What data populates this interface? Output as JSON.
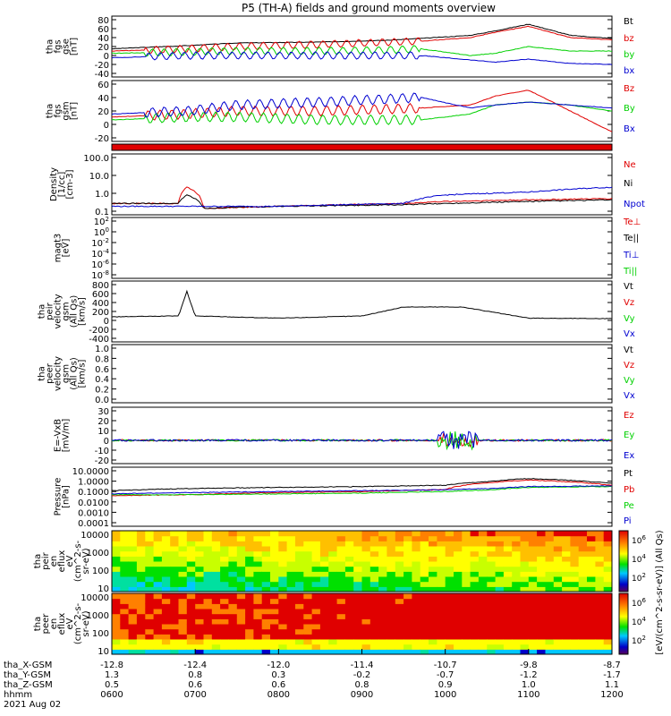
{
  "title": "P5 (TH-A) fields and ground moments overview",
  "date": "2021 Aug 02",
  "colorbar_label": "[eV/(cm^2-s-sr-eV)] (All Qs)",
  "colorbar_ticks": [
    "10^6",
    "10^4",
    "10^2"
  ],
  "colors": {
    "black": "#000000",
    "red": "#e00000",
    "green": "#00d000",
    "blue": "#0000d0",
    "orange": "#f08000"
  },
  "time_axis": {
    "rows": [
      {
        "label": "tha_X-GSM",
        "values": [
          "-12.8",
          "-12.4",
          "-12.0",
          "-11.4",
          "-10.7",
          "-9.8",
          "-8.7"
        ]
      },
      {
        "label": "tha_Y-GSM",
        "values": [
          "1.3",
          "0.8",
          "0.3",
          "-0.2",
          "-0.7",
          "-1.2",
          "-1.7"
        ]
      },
      {
        "label": "tha_Z-GSM",
        "values": [
          "0.5",
          "0.6",
          "0.6",
          "0.8",
          "0.9",
          "1.0",
          "1.1"
        ]
      },
      {
        "label": "hhmm",
        "values": [
          "0600",
          "0700",
          "0800",
          "0900",
          "1000",
          "1100",
          "1200"
        ]
      }
    ]
  },
  "chart_data": [
    {
      "type": "line",
      "panel": "fgs_gse",
      "ylabel": [
        "tha",
        "fgs",
        "gse",
        "[nT]"
      ],
      "yticks": [
        "80",
        "60",
        "40",
        "20",
        "0",
        "-20",
        "-40"
      ],
      "ylim": [
        -40,
        80
      ],
      "legend": [
        {
          "name": "Bt",
          "color": "#000000"
        },
        {
          "name": "bz",
          "color": "#e00000"
        },
        {
          "name": "by",
          "color": "#00d000"
        },
        {
          "name": "bx",
          "color": "#0000d0"
        }
      ],
      "series": [
        {
          "name": "Bt",
          "x": [
            6.0,
            6.9,
            7.5,
            8.5,
            9.3,
            9.7,
            10.3,
            10.6,
            11.0,
            11.5,
            12.0
          ],
          "y": [
            15,
            22,
            28,
            30,
            34,
            38,
            45,
            55,
            70,
            45,
            38
          ]
        },
        {
          "name": "bz",
          "x": [
            6.0,
            6.9,
            7.5,
            8.5,
            9.3,
            9.7,
            10.3,
            10.6,
            11.0,
            11.5,
            12.0
          ],
          "y": [
            10,
            15,
            20,
            25,
            30,
            32,
            40,
            52,
            65,
            40,
            35
          ]
        },
        {
          "name": "by",
          "x": [
            6.0,
            6.9,
            7.5,
            8.5,
            9.3,
            9.7,
            10.3,
            10.6,
            11.0,
            11.5,
            12.0
          ],
          "y": [
            5,
            8,
            10,
            10,
            12,
            15,
            0,
            5,
            20,
            10,
            10
          ]
        },
        {
          "name": "bx",
          "x": [
            6.0,
            6.9,
            7.5,
            8.5,
            9.3,
            9.7,
            10.3,
            10.6,
            11.0,
            11.5,
            12.0
          ],
          "y": [
            -5,
            0,
            0,
            0,
            0,
            0,
            -10,
            -15,
            -8,
            -18,
            -20
          ]
        }
      ]
    },
    {
      "type": "line",
      "panel": "fgs_gsm",
      "ylabel": [
        "tha",
        "fgs",
        "gsm",
        "[nT]"
      ],
      "yticks": [
        "60",
        "40",
        "20",
        "0",
        "-20"
      ],
      "ylim": [
        -30,
        60
      ],
      "legend": [
        {
          "name": "Bz",
          "color": "#e00000"
        },
        {
          "name": "By",
          "color": "#00d000"
        },
        {
          "name": "Bx",
          "color": "#0000d0"
        }
      ],
      "series": [
        {
          "name": "Bz",
          "x": [
            6.0,
            6.9,
            7.5,
            8.5,
            9.3,
            9.7,
            10.3,
            10.6,
            11.0,
            11.5,
            12.0
          ],
          "y": [
            5,
            10,
            15,
            15,
            18,
            20,
            25,
            40,
            50,
            15,
            -20
          ]
        },
        {
          "name": "By",
          "x": [
            6.0,
            6.9,
            7.5,
            8.5,
            9.3,
            9.7,
            10.3,
            10.6,
            11.0,
            11.5,
            12.0
          ],
          "y": [
            0,
            5,
            5,
            0,
            0,
            0,
            10,
            25,
            30,
            25,
            15
          ]
        },
        {
          "name": "Bx",
          "x": [
            6.0,
            6.9,
            7.5,
            8.5,
            9.3,
            9.7,
            10.3,
            10.6,
            11.0,
            11.5,
            12.0
          ],
          "y": [
            10,
            15,
            25,
            30,
            35,
            38,
            20,
            25,
            30,
            25,
            20
          ]
        }
      ]
    },
    {
      "type": "line",
      "panel": "density",
      "log_scale": true,
      "ylabel": [
        "Density",
        "[1/cc]",
        "[cm-3]"
      ],
      "yticks": [
        "100.0",
        "10.0",
        "1.0",
        "0.1"
      ],
      "ylim": [
        0.1,
        200
      ],
      "legend": [
        {
          "name": "Ne",
          "color": "#e00000"
        },
        {
          "name": "Ni",
          "color": "#000000"
        },
        {
          "name": "Npot",
          "color": "#0000d0"
        }
      ],
      "series": [
        {
          "name": "Ne",
          "x": [
            6.0,
            6.8,
            6.9,
            7.1,
            8.0,
            9.5,
            10.0,
            11.0,
            12.0
          ],
          "y": [
            0.3,
            0.3,
            3.0,
            0.15,
            0.2,
            0.3,
            0.4,
            0.5,
            0.6
          ]
        },
        {
          "name": "Ni",
          "x": [
            6.0,
            6.8,
            6.9,
            7.1,
            8.0,
            9.5,
            10.0,
            11.0,
            12.0
          ],
          "y": [
            0.3,
            0.3,
            1.0,
            0.15,
            0.2,
            0.25,
            0.3,
            0.4,
            0.5
          ]
        },
        {
          "name": "Npot",
          "x": [
            6.0,
            6.8,
            8.0,
            9.5,
            10.0,
            11.0,
            12.0
          ],
          "y": [
            0.2,
            0.2,
            0.2,
            0.3,
            1.0,
            1.5,
            3.0
          ]
        }
      ]
    },
    {
      "type": "line",
      "panel": "temperature",
      "log_scale": true,
      "ylabel": [
        "magt3",
        "[eV]"
      ],
      "yticks": [
        "10^2",
        "10^0",
        "10^-2",
        "10^-4",
        "10^-6",
        "10^-8"
      ],
      "legend": [
        {
          "name": "Te⊥",
          "color": "#e00000"
        },
        {
          "name": "Te||",
          "color": "#000000"
        },
        {
          "name": "Ti⊥",
          "color": "#0000d0"
        },
        {
          "name": "Ti||",
          "color": "#00d000"
        }
      ]
    },
    {
      "type": "line",
      "panel": "peir_velocity",
      "ylabel": [
        "tha",
        "peir",
        "velocity",
        "gsm",
        "(All Qs)",
        "[km/s]"
      ],
      "yticks": [
        "800",
        "600",
        "400",
        "200",
        "0",
        "-200",
        "-400"
      ],
      "ylim": [
        -400,
        800
      ],
      "legend": [
        {
          "name": "Vt",
          "color": "#000000"
        },
        {
          "name": "Vz",
          "color": "#e00000"
        },
        {
          "name": "Vy",
          "color": "#00d000"
        },
        {
          "name": "Vx",
          "color": "#0000d0"
        }
      ],
      "series": [
        {
          "name": "Vt",
          "x": [
            6.0,
            6.8,
            6.9,
            7.0,
            8.0,
            9.0,
            9.5,
            10.2,
            11.0,
            12.0
          ],
          "y": [
            80,
            100,
            650,
            100,
            50,
            100,
            300,
            300,
            50,
            40
          ]
        }
      ]
    },
    {
      "type": "line",
      "panel": "peer_velocity",
      "ylabel": [
        "tha",
        "peer",
        "velocity",
        "gsm",
        "(All Qs)",
        "[km/s]"
      ],
      "yticks": [
        "1.0",
        "0.8",
        "0.6",
        "0.4",
        "0.2",
        "0.0"
      ],
      "ylim": [
        0,
        1
      ],
      "legend": [
        {
          "name": "Vt",
          "color": "#000000"
        },
        {
          "name": "Vz",
          "color": "#e00000"
        },
        {
          "name": "Vy",
          "color": "#00d000"
        },
        {
          "name": "Vx",
          "color": "#0000d0"
        }
      ]
    },
    {
      "type": "line",
      "panel": "efield",
      "ylabel": [
        "E=-VxB",
        "[mV/m]"
      ],
      "yticks": [
        "30",
        "20",
        "10",
        "0",
        "-10",
        "-20"
      ],
      "ylim": [
        -20,
        30
      ],
      "legend": [
        {
          "name": "Ez",
          "color": "#e00000"
        },
        {
          "name": "Ey",
          "color": "#00d000"
        },
        {
          "name": "Ex",
          "color": "#0000d0"
        }
      ]
    },
    {
      "type": "line",
      "panel": "pressure",
      "log_scale": true,
      "ylabel": [
        "Pressure",
        "[nPa]"
      ],
      "yticks": [
        "10.0000",
        "1.0000",
        "0.1000",
        "0.0100",
        "0.0010",
        "0.0001"
      ],
      "ylim": [
        0.0001,
        10
      ],
      "legend": [
        {
          "name": "Pt",
          "color": "#000000"
        },
        {
          "name": "Pb",
          "color": "#e00000"
        },
        {
          "name": "Pe",
          "color": "#00d000"
        },
        {
          "name": "Pi",
          "color": "#0000d0"
        }
      ],
      "series": [
        {
          "name": "Pt",
          "x": [
            6.0,
            7.0,
            8.0,
            9.0,
            10.0,
            10.6,
            11.0,
            12.0
          ],
          "y": [
            0.12,
            0.2,
            0.25,
            0.3,
            0.4,
            1.0,
            1.8,
            0.6
          ]
        },
        {
          "name": "Pb",
          "x": [
            6.0,
            7.0,
            8.0,
            9.0,
            10.0,
            10.6,
            11.0,
            12.0
          ],
          "y": [
            0.04,
            0.05,
            0.08,
            0.1,
            0.15,
            0.8,
            1.3,
            0.4
          ]
        },
        {
          "name": "Pe",
          "x": [
            6.0,
            7.0,
            8.0,
            9.0,
            10.0,
            10.6,
            11.0,
            12.0
          ],
          "y": [
            0.05,
            0.05,
            0.06,
            0.07,
            0.1,
            0.15,
            0.25,
            0.3
          ]
        },
        {
          "name": "Pi",
          "x": [
            6.0,
            7.0,
            8.0,
            9.0,
            10.0,
            10.6,
            11.0,
            12.0
          ],
          "y": [
            0.06,
            0.08,
            0.1,
            0.12,
            0.15,
            0.2,
            0.3,
            0.35
          ]
        }
      ]
    },
    {
      "type": "heatmap",
      "panel": "peir_en_eflux",
      "ylabel": [
        "tha",
        "peir",
        "en",
        "eflux",
        "eV",
        "(cm^2-s-",
        "sr-eV)"
      ],
      "yticks": [
        "10000",
        "1000",
        "100",
        "10"
      ]
    },
    {
      "type": "heatmap",
      "panel": "peer_en_eflux",
      "ylabel": [
        "tha",
        "peer",
        "en",
        "eflux",
        "eV",
        "(cm^2-s-",
        "sr-eV)"
      ],
      "yticks": [
        "10000",
        "1000",
        "100",
        "10"
      ]
    }
  ]
}
